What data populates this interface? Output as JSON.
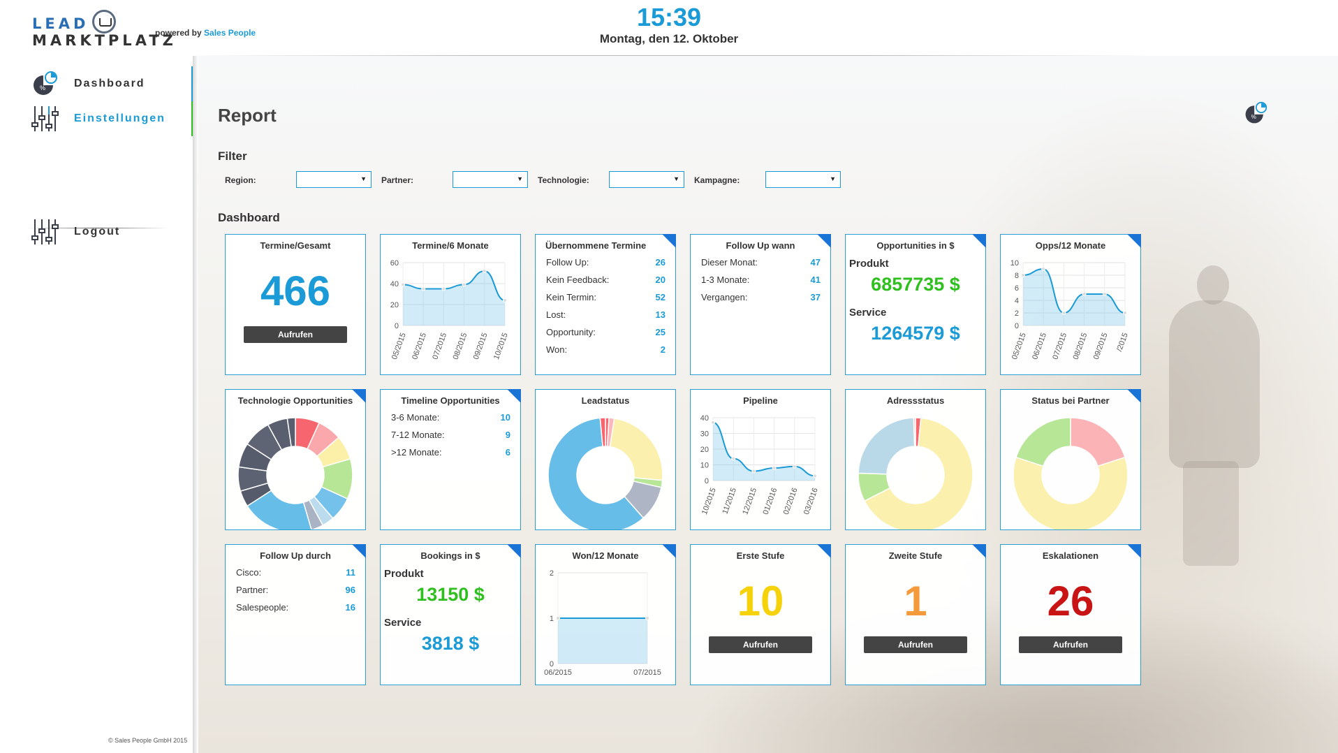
{
  "header": {
    "logo_part1": "LEAD",
    "logo_part2": "MARKTPLATZ",
    "logo_powered": "powered by",
    "logo_brand": "Sales People",
    "time": "15:39",
    "date": "Montag, den 12. Oktober"
  },
  "sidebar": {
    "items": [
      {
        "label": "Dashboard",
        "icon": "dashboard-pie-icon"
      },
      {
        "label": "Einstellungen",
        "icon": "sliders-icon"
      },
      {
        "label": "Logout",
        "icon": "sliders-icon"
      }
    ],
    "copyright": "© Sales People GmbH 2015"
  },
  "main": {
    "page_title": "Report",
    "filter_title": "Filter",
    "filters": [
      {
        "label": "Region:",
        "value": ""
      },
      {
        "label": "Partner:",
        "value": ""
      },
      {
        "label": "Technologie:",
        "value": ""
      },
      {
        "label": "Kampagne:",
        "value": ""
      }
    ],
    "dashboard_title": "Dashboard"
  },
  "colors": {
    "accent": "#1a9ad6",
    "green": "#2fbf1f",
    "yellow": "#f6d20a",
    "orange": "#f59a3a",
    "red": "#c81414",
    "dark": "#444444"
  },
  "cards": {
    "termine_gesamt": {
      "title": "Termine/Gesamt",
      "value": "466",
      "button": "Aufrufen"
    },
    "termine_6m": {
      "title": "Termine/6 Monate"
    },
    "uebernommene": {
      "title": "Übernommene Termine",
      "rows": [
        {
          "k": "Follow Up:",
          "v": "26"
        },
        {
          "k": "Kein Feedback:",
          "v": "20"
        },
        {
          "k": "Kein Termin:",
          "v": "52"
        },
        {
          "k": "Lost:",
          "v": "13"
        },
        {
          "k": "Opportunity:",
          "v": "25"
        },
        {
          "k": "Won:",
          "v": "2"
        }
      ]
    },
    "follow_up_wann": {
      "title": "Follow Up wann",
      "rows": [
        {
          "k": "Dieser Monat:",
          "v": "47"
        },
        {
          "k": "1-3 Monate:",
          "v": "41"
        },
        {
          "k": "Vergangen:",
          "v": "37"
        }
      ]
    },
    "opportunities": {
      "title": "Opportunities in $",
      "label1": "Produkt",
      "value1": "6857735 $",
      "label2": "Service",
      "value2": "1264579 $"
    },
    "opps_12m": {
      "title": "Opps/12 Monate"
    },
    "technologie_opps": {
      "title": "Technologie Opportunities"
    },
    "timeline_opps": {
      "title": "Timeline Opportunities",
      "rows": [
        {
          "k": "3-6 Monate:",
          "v": "10"
        },
        {
          "k": "7-12 Monate:",
          "v": "9"
        },
        {
          "k": ">12 Monate:",
          "v": "6"
        }
      ]
    },
    "leadstatus": {
      "title": "Leadstatus"
    },
    "pipeline": {
      "title": "Pipeline"
    },
    "adressstatus": {
      "title": "Adressstatus"
    },
    "status_partner": {
      "title": "Status bei Partner"
    },
    "follow_up_durch": {
      "title": "Follow Up durch",
      "rows": [
        {
          "k": "Cisco:",
          "v": "11"
        },
        {
          "k": "Partner:",
          "v": "96"
        },
        {
          "k": "Salespeople:",
          "v": "16"
        }
      ]
    },
    "bookings": {
      "title": "Bookings in $",
      "label1": "Produkt",
      "value1": "13150 $",
      "label2": "Service",
      "value2": "3818 $"
    },
    "won_12m": {
      "title": "Won/12 Monate"
    },
    "erste_stufe": {
      "title": "Erste Stufe",
      "value": "10",
      "button": "Aufrufen"
    },
    "zweite_stufe": {
      "title": "Zweite Stufe",
      "value": "1",
      "button": "Aufrufen"
    },
    "eskalationen": {
      "title": "Eskalationen",
      "value": "26",
      "button": "Aufrufen"
    }
  },
  "chart_data": [
    {
      "id": "termine_6m",
      "type": "area",
      "categories": [
        "05/2015",
        "06/2015",
        "07/2015",
        "08/2015",
        "09/2015",
        "10/2015"
      ],
      "values": [
        39,
        35,
        35,
        39,
        52,
        24
      ],
      "ylim": [
        0,
        60
      ],
      "yticks": [
        0,
        20,
        40,
        60
      ]
    },
    {
      "id": "opps_12m",
      "type": "area",
      "categories": [
        "05/2015",
        "06/2015",
        "07/2015",
        "08/2015",
        "09/2015",
        "/2015"
      ],
      "values": [
        8,
        9,
        2,
        5,
        5,
        2
      ],
      "ylim": [
        0,
        10
      ],
      "yticks": [
        0,
        2,
        4,
        6,
        8,
        10
      ]
    },
    {
      "id": "pipeline",
      "type": "area",
      "categories": [
        "10/2015",
        "11/2015",
        "12/2015",
        "01/2016",
        "02/2016",
        "03/2016"
      ],
      "values": [
        37,
        14,
        6,
        8,
        9,
        3
      ],
      "ylim": [
        0,
        40
      ],
      "yticks": [
        0,
        10,
        20,
        30,
        40
      ]
    },
    {
      "id": "won_12m",
      "type": "area",
      "categories": [
        "06/2015",
        "07/2015"
      ],
      "values": [
        1,
        1
      ],
      "ylim": [
        0,
        2
      ],
      "yticks": [
        0,
        1,
        2
      ]
    },
    {
      "id": "technologie_opps",
      "type": "pie",
      "values": [
        6,
        6,
        6,
        10,
        6,
        3,
        3,
        18,
        4,
        6,
        6,
        7,
        5,
        2
      ],
      "colors": [
        "#f7656e",
        "#fba8ad",
        "#fcf0a8",
        "#b8e697",
        "#74c2ec",
        "#bcdcee",
        "#aab3c4",
        "#66bde8",
        "#555b6b",
        "#5d6272",
        "#575c6d",
        "#5f6474",
        "#5a5f70",
        "#595e6f"
      ]
    },
    {
      "id": "leadstatus",
      "type": "pie",
      "values": [
        1,
        1.5,
        24,
        2,
        10,
        60,
        1.5
      ],
      "colors": [
        "#f7656e",
        "#fbb8bc",
        "#fcf0ae",
        "#b8e697",
        "#aeb6c6",
        "#66bde8",
        "#f7656e"
      ]
    },
    {
      "id": "adressstatus",
      "type": "pie",
      "values": [
        1.5,
        66,
        8,
        24,
        0.5
      ],
      "colors": [
        "#f7656e",
        "#fcf0ae",
        "#b8e697",
        "#b9d9e8",
        "#fbb8bc"
      ]
    },
    {
      "id": "status_partner",
      "type": "pie",
      "values": [
        20,
        60,
        20
      ],
      "colors": [
        "#fbb3b6",
        "#fcf0ae",
        "#b8e697"
      ]
    }
  ]
}
